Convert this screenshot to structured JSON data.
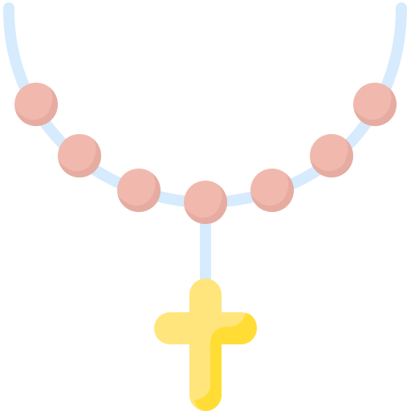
{
  "icon": {
    "name": "rosary-icon",
    "colors": {
      "string": "#d6ebfd",
      "bead_base": "#f1b9ae",
      "bead_shade": "#e6aca2",
      "bead_highlight": "#f6c9c0",
      "cross_base": "#ffe57c",
      "cross_shade": "#ffdd35"
    },
    "bead_count": 7
  }
}
